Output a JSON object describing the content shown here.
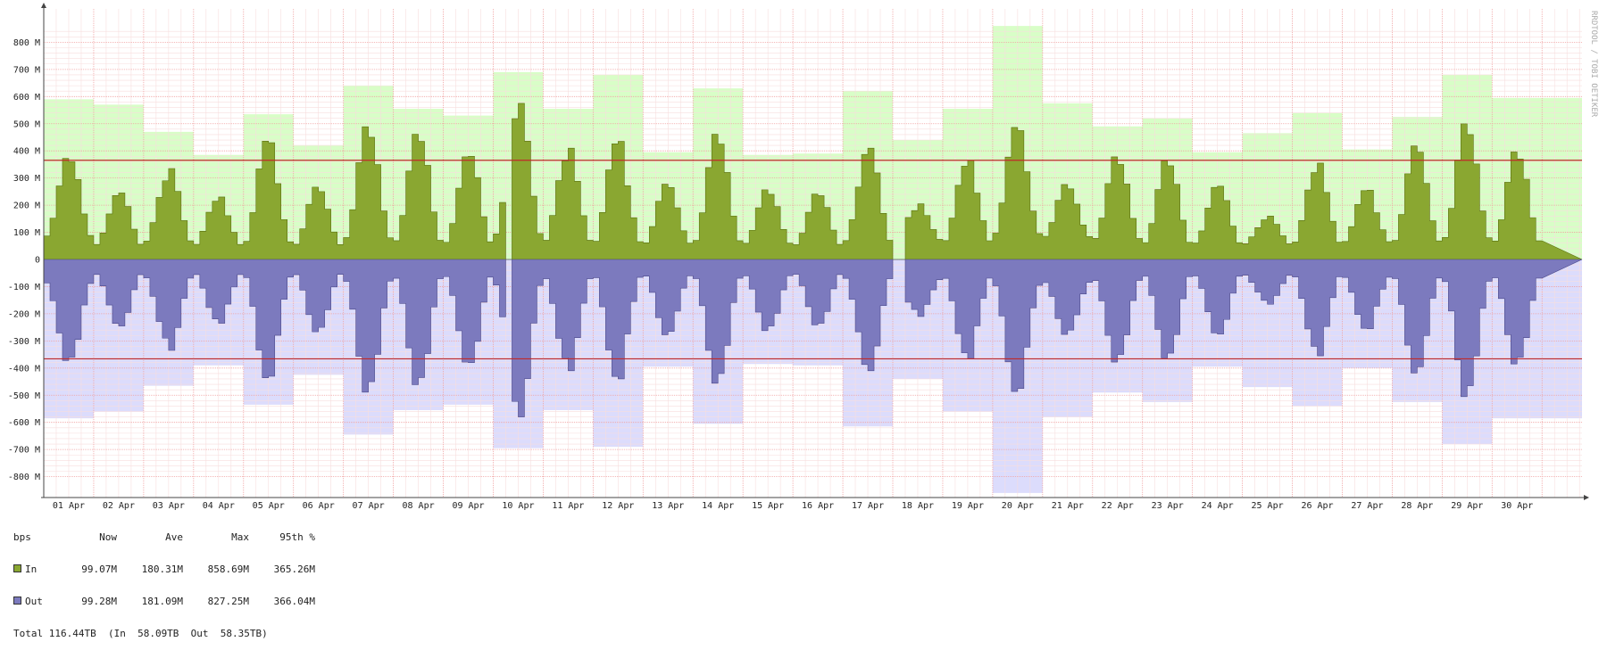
{
  "chart_data": {
    "type": "area",
    "unit": "bps",
    "side_label": "RRDTOOL / TOBI OETIKER",
    "ylim": [
      -840,
      870
    ],
    "y_ticks": [
      {
        "v": 800,
        "label": "800 M"
      },
      {
        "v": 700,
        "label": "700 M"
      },
      {
        "v": 600,
        "label": "600 M"
      },
      {
        "v": 500,
        "label": "500 M"
      },
      {
        "v": 400,
        "label": "400 M"
      },
      {
        "v": 300,
        "label": "300 M"
      },
      {
        "v": 200,
        "label": "200 M"
      },
      {
        "v": 100,
        "label": "100 M"
      },
      {
        "v": 0,
        "label": "0"
      },
      {
        "v": -100,
        "label": "-100 M"
      },
      {
        "v": -200,
        "label": "-200 M"
      },
      {
        "v": -300,
        "label": "-300 M"
      },
      {
        "v": -400,
        "label": "-400 M"
      },
      {
        "v": -500,
        "label": "-500 M"
      },
      {
        "v": -600,
        "label": "-600 M"
      },
      {
        "v": -700,
        "label": "-700 M"
      },
      {
        "v": -800,
        "label": "-800 M"
      }
    ],
    "x_labels": [
      "01 Apr",
      "02 Apr",
      "03 Apr",
      "04 Apr",
      "05 Apr",
      "06 Apr",
      "07 Apr",
      "08 Apr",
      "09 Apr",
      "10 Apr",
      "11 Apr",
      "12 Apr",
      "13 Apr",
      "14 Apr",
      "15 Apr",
      "16 Apr",
      "17 Apr",
      "18 Apr",
      "19 Apr",
      "20 Apr",
      "21 Apr",
      "22 Apr",
      "23 Apr",
      "24 Apr",
      "25 Apr",
      "26 Apr",
      "27 Apr",
      "28 Apr",
      "29 Apr",
      "30 Apr"
    ],
    "days": 30.8,
    "daily_max_in": [
      590,
      570,
      470,
      385,
      535,
      420,
      640,
      555,
      530,
      690,
      555,
      680,
      395,
      630,
      385,
      390,
      620,
      440,
      555,
      860,
      575,
      490,
      520,
      395,
      465,
      540,
      405,
      525,
      680,
      595
    ],
    "daily_max_out": [
      585,
      560,
      465,
      390,
      535,
      425,
      645,
      555,
      535,
      695,
      555,
      690,
      395,
      605,
      385,
      390,
      615,
      440,
      560,
      860,
      580,
      490,
      525,
      395,
      470,
      540,
      400,
      525,
      680,
      585
    ],
    "daily_peak_in": [
      360,
      245,
      335,
      230,
      430,
      250,
      450,
      435,
      380,
      575,
      410,
      435,
      265,
      425,
      240,
      235,
      410,
      205,
      365,
      475,
      260,
      350,
      345,
      270,
      160,
      355,
      255,
      395,
      460,
      370
    ],
    "daily_peak_out": [
      360,
      245,
      335,
      235,
      430,
      250,
      450,
      435,
      380,
      580,
      410,
      440,
      265,
      420,
      245,
      235,
      410,
      210,
      365,
      475,
      260,
      350,
      345,
      275,
      165,
      355,
      255,
      395,
      465,
      360
    ],
    "daily_base": [
      80,
      50,
      60,
      50,
      55,
      50,
      70,
      60,
      55,
      80,
      60,
      55,
      55,
      60,
      55,
      50,
      60,
      70,
      60,
      85,
      80,
      70,
      55,
      55,
      55,
      55,
      60,
      60,
      70,
      60
    ],
    "gaps": [
      [
        9.28,
        9.36
      ],
      [
        17.02,
        17.2
      ]
    ],
    "percentile_95_in": 365.26,
    "percentile_95_out": -366.04,
    "colors": {
      "in_area": "#8aa731",
      "in_area_stroke": "#5a7010",
      "in_max": "#d8fec7",
      "out_area": "#7c7abe",
      "out_area_stroke": "#4c4a8a",
      "out_max": "#dcdcfc",
      "percentile": "#c02828",
      "grid_major": "#f0a0a0",
      "grid_minor": "#f7dede",
      "axis": "#444444"
    }
  },
  "legend": {
    "header": {
      "unit": "bps",
      "now": "Now",
      "avg": "Ave",
      "max": "Max",
      "p95": "95th %"
    },
    "rows": [
      {
        "name": "In",
        "color": "#8aa731",
        "now": "99.07M",
        "avg": "180.31M",
        "max": "858.69M",
        "p95": "365.26M"
      },
      {
        "name": "Out",
        "color": "#7c7abe",
        "now": "99.28M",
        "avg": "181.09M",
        "max": "827.25M",
        "p95": "366.04M"
      }
    ],
    "total": "Total 116.44TB  (In  58.09TB  Out  58.35TB)"
  }
}
